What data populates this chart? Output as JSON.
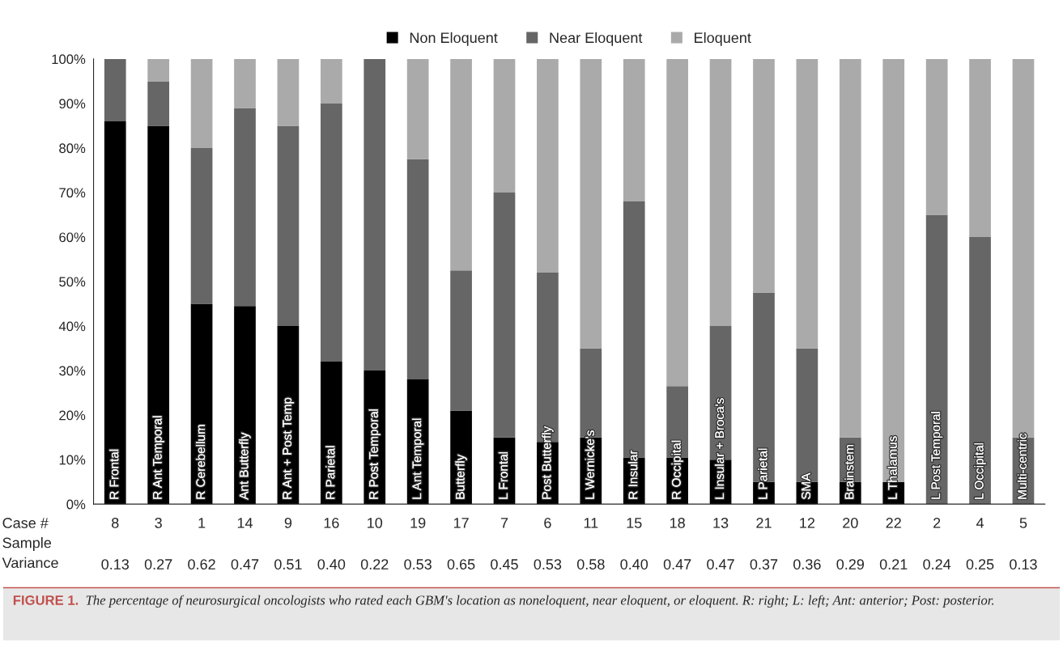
{
  "chart_data": {
    "type": "bar",
    "stacked": true,
    "legend": "top",
    "categories": [
      "R Frontal",
      "R Ant Temporal",
      "R Cerebellum",
      "Ant Butterfly",
      "R Ant + Post Temp",
      "R Parietal",
      "R Post Temporal",
      "L Ant Temporal",
      "Butterfly",
      "L Frontal",
      "Post Butterfly",
      "L Wernicke's",
      "R Insular",
      "R Occipital",
      "L Insular + Broca's",
      "L Parietal",
      "SMA",
      "Brainstem",
      "L Thalamus",
      "L Post Temporal",
      "L Occipital",
      "Multi-centric"
    ],
    "series": [
      {
        "name": "Non Eloquent",
        "color": "#000000",
        "values": [
          86,
          85,
          45,
          44.5,
          40,
          32,
          30,
          28,
          21,
          15,
          14,
          15,
          10.5,
          10.5,
          10,
          5,
          5,
          5,
          5,
          0,
          0,
          0
        ]
      },
      {
        "name": "Near Eloquent",
        "color": "#666666",
        "values": [
          14,
          10,
          35,
          44.5,
          45,
          58,
          70,
          49.5,
          31.5,
          55,
          38,
          20,
          57.5,
          16,
          30,
          42.5,
          30,
          10,
          0,
          65,
          60,
          15
        ]
      },
      {
        "name": "Eloquent",
        "color": "#aaaaaa",
        "values": [
          0,
          5,
          20,
          11,
          15,
          10,
          0,
          22.5,
          47.5,
          30,
          48,
          65,
          32,
          73.5,
          60,
          52.5,
          65,
          85,
          95,
          35,
          40,
          85
        ]
      }
    ],
    "ylim": [
      0,
      100
    ],
    "yticks": [
      {
        "value": 0,
        "label": "0%"
      },
      {
        "value": 10,
        "label": "10%"
      },
      {
        "value": 20,
        "label": "20%"
      },
      {
        "value": 30,
        "label": "30%"
      },
      {
        "value": 40,
        "label": "40%"
      },
      {
        "value": 50,
        "label": "50%"
      },
      {
        "value": 60,
        "label": "60%"
      },
      {
        "value": 70,
        "label": "70%"
      },
      {
        "value": 80,
        "label": "80%"
      },
      {
        "value": 90,
        "label": "90%"
      },
      {
        "value": 100,
        "label": "100%"
      }
    ],
    "grid": false,
    "annotations": [
      "Case #",
      "Sample\nVariance",
      "FIGURE 1.",
      "The percentage of neurosurgical oncologists who rated each GBM's location as noneloquent, near eloquent, or eloquent. R: right; L: left; Ant: anterior; Post: posterior.",
      "8",
      "3",
      "1",
      "14",
      "9",
      "16",
      "10",
      "19",
      "17",
      "7",
      "6",
      "11",
      "15",
      "18",
      "13",
      "21",
      "12",
      "20",
      "22",
      "2",
      "4",
      "5",
      "0.13",
      "0.27",
      "0.62",
      "0.47",
      "0.51",
      "0.40",
      "0.22",
      "0.53",
      "0.65",
      "0.45",
      "0.53",
      "0.58",
      "0.40",
      "0.47",
      "0.47",
      "0.37",
      "0.36",
      "0.29",
      "0.21",
      "0.24",
      "0.25",
      "0.13"
    ]
  }
}
